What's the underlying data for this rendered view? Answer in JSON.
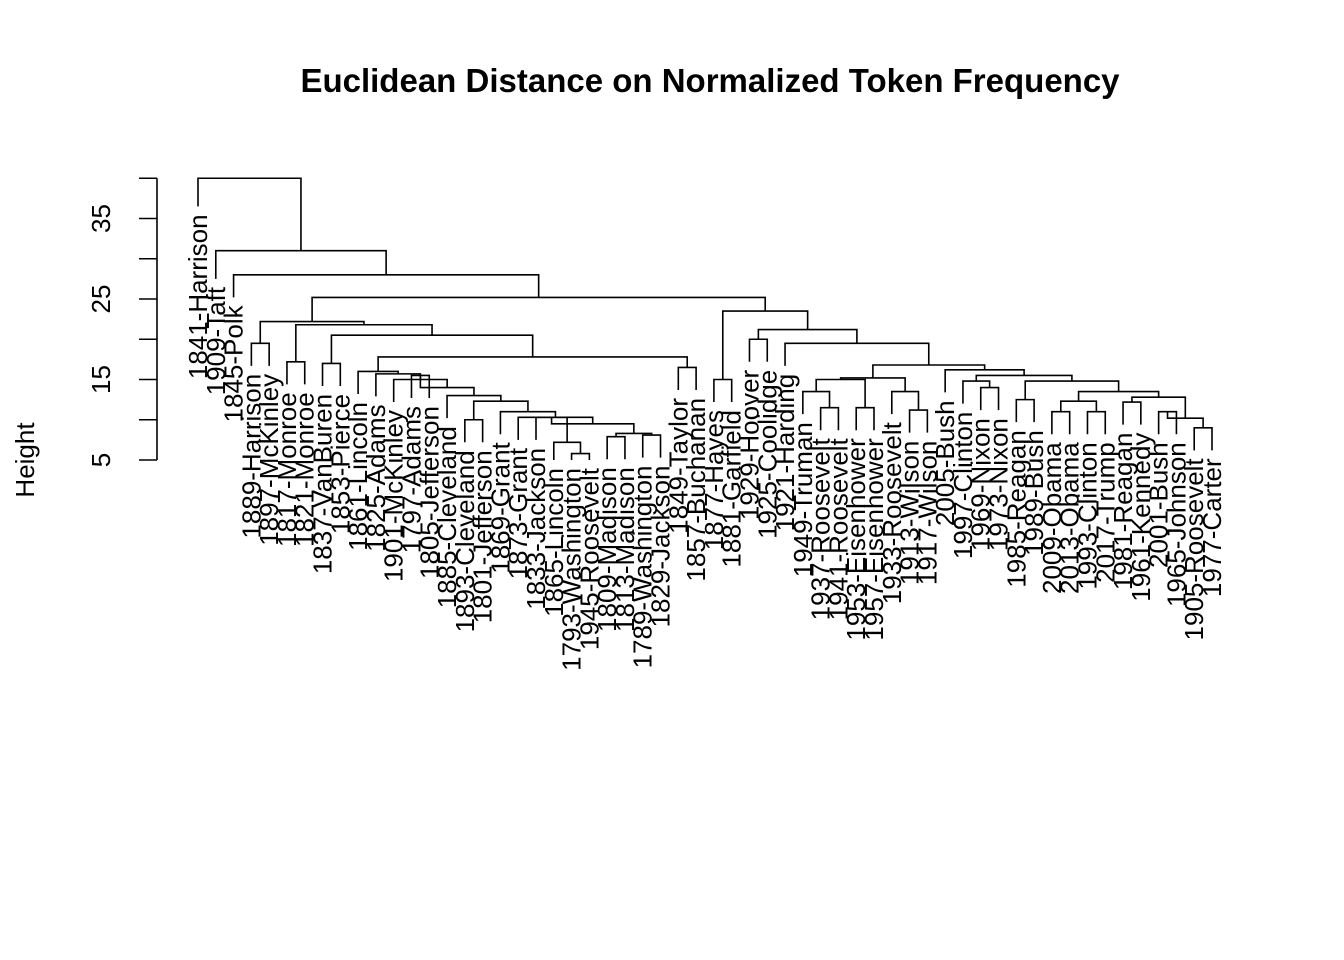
{
  "chart_data": {
    "type": "dendrogram",
    "title": "Euclidean Distance on Normalized Token Frequency",
    "ylabel": "Height",
    "xlabel": "",
    "yticks": [
      5,
      15,
      25,
      35
    ],
    "ylim": [
      5,
      40
    ],
    "grid": false,
    "legend": "none",
    "leaves": [
      "1841-Harrison",
      "1909-Taft",
      "1845-Polk",
      "1889-Harrison",
      "1897-McKinley",
      "1817-Monroe",
      "1821-Monroe",
      "1837-VanBuren",
      "1853-Pierce",
      "1861-Lincoln",
      "1825-Adams",
      "1901-McKinley",
      "1797-Adams",
      "1805-Jefferson",
      "1885-Cleveland",
      "1893-Cleveland",
      "1801-Jefferson",
      "1869-Grant",
      "1873-Grant",
      "1833-Jackson",
      "1865-Lincoln",
      "1793-Washington",
      "1945-Roosevelt",
      "1809-Madison",
      "1813-Madison",
      "1789-Washington",
      "1829-Jackson",
      "1849-Taylor",
      "1857-Buchanan",
      "1877-Hayes",
      "1881-Garfield",
      "1929-Hoover",
      "1925-Coolidge",
      "1921-Harding",
      "1949-Truman",
      "1937-Roosevelt",
      "1941-Roosevelt",
      "1953-Eisenhower",
      "1957-Eisenhower",
      "1933-Roosevelt",
      "1913-Wilson",
      "1917-Wilson",
      "2005-Bush",
      "1997-Clinton",
      "1969-Nixon",
      "1973-Nixon",
      "1985-Reagan",
      "1989-Bush",
      "2009-Obama",
      "2013-Obama",
      "1993-Clinton",
      "2017-Trump",
      "1981-Reagan",
      "1961-Kennedy",
      "2001-Bush",
      "1965-Johnson",
      "1905-Roosevelt",
      "1977-Carter"
    ],
    "merges": [
      [
        4,
        5,
        19.5
      ],
      [
        6,
        7,
        17.2
      ],
      [
        8,
        9,
        17.0
      ],
      [
        13,
        14,
        15.5
      ],
      [
        16,
        17,
        10.0
      ],
      [
        22,
        23,
        5.8
      ],
      [
        24,
        25,
        7.9
      ],
      [
        26,
        27,
        8.1
      ],
      [
        28,
        29,
        8.0
      ],
      [
        30,
        31,
        15.0
      ],
      [
        36,
        37,
        11.5
      ],
      [
        38,
        39,
        11.5
      ],
      [
        41,
        42,
        11.2
      ],
      [
        45,
        46,
        14.0
      ],
      [
        49,
        50,
        11.0
      ],
      [
        51,
        52,
        11.0
      ],
      [
        56,
        57,
        9.0
      ],
      [
        18,
        10.5
      ],
      [
        19,
        10.5
      ],
      [
        20,
        10.3
      ],
      [
        -5,
        21,
        7.2
      ],
      [
        -6,
        -7,
        7.8
      ],
      [
        -8,
        -9,
        8.3
      ],
      [
        -10,
        -12,
        8.6
      ],
      [
        -11,
        -13,
        9.0
      ],
      [
        -14,
        -15,
        9.3
      ],
      [
        -16,
        -17,
        9.7
      ],
      [
        -18,
        -19,
        10.5
      ],
      [
        -20,
        -21,
        10.7
      ],
      [
        -22,
        12.3
      ],
      [
        -23,
        13.0
      ],
      [
        -24,
        14.0
      ],
      [
        -4,
        -25,
        15.0
      ],
      [
        -26,
        15.7
      ],
      [
        -27,
        16.2
      ],
      [
        -28,
        -3,
        16.5
      ],
      [
        -1,
        -2,
        18.2
      ],
      [
        -29,
        -30,
        18.8
      ],
      [
        -31,
        11,
        20.3
      ],
      [
        -32,
        10,
        21.2
      ],
      [
        -33,
        -34,
        21.8
      ],
      [
        -35,
        33,
        13.5
      ],
      [
        -36,
        -11,
        15.0
      ],
      [
        -37,
        40,
        13.0
      ],
      [
        -38,
        -12,
        13.5
      ],
      [
        -39,
        -40,
        15.0
      ],
      [
        43,
        44,
        16.2
      ],
      [
        -13,
        47,
        15.0
      ],
      [
        48,
        14.0
      ],
      [
        -42,
        15.0
      ],
      [
        -14,
        -15,
        12.0
      ],
      [
        -16,
        -44,
        12.5
      ],
      [
        -45,
        53,
        12.5
      ],
      [
        -46,
        54,
        11.2
      ],
      [
        -47,
        55,
        10.8
      ],
      [
        -48,
        -49,
        10.0
      ],
      [
        -50,
        14.5
      ],
      [
        -51,
        15.2
      ],
      [
        -41,
        -52,
        16.5
      ],
      [
        -53,
        -54,
        16.2
      ],
      [
        -55,
        -56,
        19.5
      ],
      [
        -57,
        34,
        19.8
      ],
      [
        -58,
        32,
        21.5
      ],
      [
        -59,
        31,
        23.5
      ],
      [
        -60,
        -61,
        25.2
      ],
      [
        2,
        -62,
        28.0
      ],
      [
        1,
        -63,
        31.0
      ],
      [
        0,
        -64,
        40.0
      ]
    ]
  }
}
